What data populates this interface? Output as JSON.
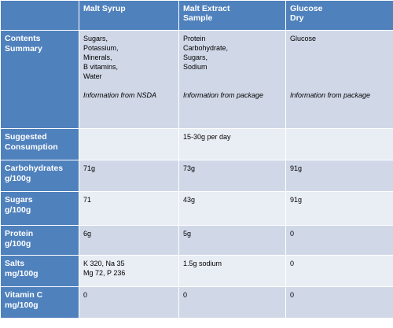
{
  "columns": [
    "",
    "Malt Syrup",
    "Malt Extract\nSample",
    "Glucose\nDry"
  ],
  "contents": {
    "label": "Contents\nSummary",
    "cells": [
      {
        "lines": [
          "Sugars,",
          "Potassium,",
          "Minerals,",
          "B vitamins,",
          "Water"
        ],
        "note": "Information from NSDA"
      },
      {
        "lines": [
          "Protein",
          "Carbohydrate,",
          "Sugars,",
          "Sodium"
        ],
        "note": "Information from package"
      },
      {
        "lines": [
          "Glucose"
        ],
        "note": "Information from package"
      }
    ]
  },
  "rows": [
    {
      "label": "Suggested\nConsumption",
      "cells": [
        "",
        "15-30g per day",
        ""
      ]
    },
    {
      "label": "Carbohydrates\ng/100g",
      "cells": [
        "71g",
        "73g",
        "91g"
      ]
    },
    {
      "label": "Sugars\ng/100g",
      "cells": [
        "71",
        "43g",
        "91g"
      ]
    },
    {
      "label": "Protein\ng/100g",
      "cells": [
        "6g",
        "5g",
        "0"
      ]
    },
    {
      "label": "Salts\nmg/100g",
      "cells": [
        "K 320, Na 35\nMg 72, P 236",
        "1.5g sodium",
        "0"
      ]
    },
    {
      "label": "Vitamin C\nmg/100g",
      "cells": [
        "0",
        "0",
        "0"
      ]
    }
  ]
}
